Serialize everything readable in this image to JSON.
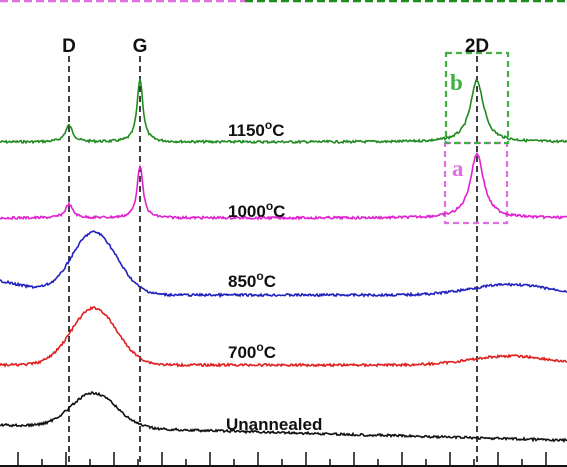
{
  "chart_data": {
    "type": "line",
    "peaks": [
      {
        "id": "D",
        "label": "D"
      },
      {
        "id": "G",
        "label": "G"
      },
      {
        "id": "2D",
        "label": "2D"
      }
    ],
    "series": [
      {
        "name": "1150°C",
        "label_text": "1150",
        "label_sup": "o",
        "label_unit": "C",
        "color": "#1f8a1f",
        "peaks": {
          "D": 0.55,
          "G": 2.1,
          "2D": 2.05
        }
      },
      {
        "name": "1000°C",
        "label_text": "1000",
        "label_sup": "o",
        "label_unit": "C",
        "color": "#e020d0",
        "peaks": {
          "D": 0.45,
          "G": 1.75,
          "2D": 2.15
        }
      },
      {
        "name": "850°C",
        "label_text": "850",
        "label_sup": "o",
        "label_unit": "C",
        "color": "#2020c0",
        "peaks": {
          "broad_DG": 2.1,
          "2D": 0.35
        }
      },
      {
        "name": "700°C",
        "label_text": "700",
        "label_sup": "o",
        "label_unit": "C",
        "color": "#e02020",
        "peaks": {
          "broad_DG": 1.9,
          "2D": 0.3
        }
      },
      {
        "name": "Unannealed",
        "label_text": "Unannealed",
        "label_sup": "",
        "label_unit": "",
        "color": "#111111",
        "peaks": {
          "broad_DG": 1.15
        }
      }
    ],
    "boxes": [
      {
        "label": "a",
        "color": "#e070e0",
        "series": "1000°C"
      },
      {
        "label": "b",
        "color": "#40b040",
        "series": "1150°C"
      }
    ],
    "grid": false,
    "xlabel": "",
    "ylabel": ""
  },
  "colors": {
    "top_bar_left": "#e070e0",
    "top_bar_right": "#1f8a1f"
  }
}
